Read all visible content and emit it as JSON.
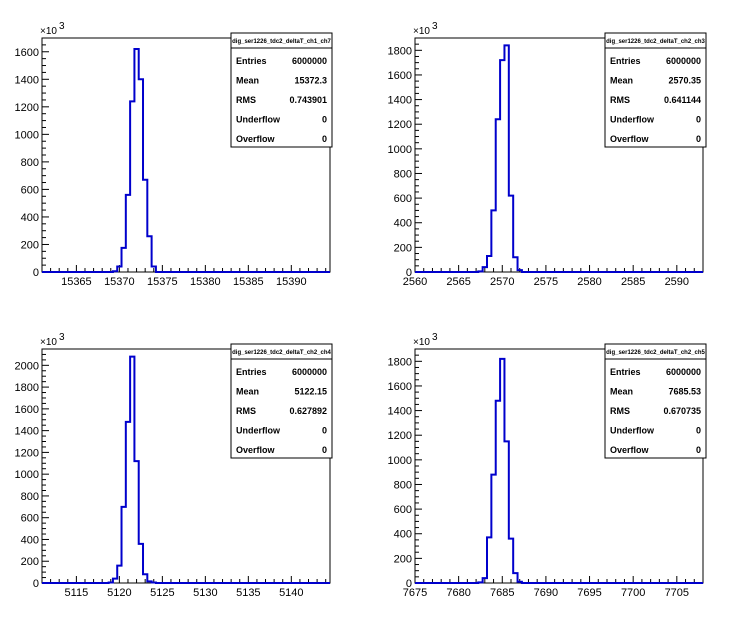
{
  "chart_data": [
    {
      "type": "bar",
      "title": "dig_ser1226_tdc2_deltaT_ch1_ch7",
      "multiplier": "×10",
      "multiplier_exp": "3",
      "xlim": [
        15361,
        15394.5
      ],
      "ylim": [
        0,
        1700
      ],
      "x_ticks": [
        15365,
        15370,
        15375,
        15380,
        15385,
        15390
      ],
      "y_ticks": [
        0,
        200,
        400,
        600,
        800,
        1000,
        1200,
        1400,
        1600
      ],
      "bin_width": 0.5,
      "x": [
        15369.5,
        15370.0,
        15370.5,
        15371.0,
        15371.5,
        15372.0,
        15372.5,
        15373.0,
        15373.5,
        15374.0
      ],
      "values": [
        5,
        40,
        175,
        560,
        1240,
        1620,
        1400,
        670,
        260,
        40
      ],
      "stats": [
        {
          "label": "Entries",
          "value": "6000000"
        },
        {
          "label": "Mean",
          "value": "15372.3"
        },
        {
          "label": "RMS",
          "value": "0.743901"
        },
        {
          "label": "Underflow",
          "value": "0"
        },
        {
          "label": "Overflow",
          "value": "0"
        }
      ]
    },
    {
      "type": "bar",
      "title": "dig_ser1226_tdc2_deltaT_ch2_ch3",
      "multiplier": "×10",
      "multiplier_exp": "3",
      "xlim": [
        2560,
        2593
      ],
      "ylim": [
        0,
        1900
      ],
      "x_ticks": [
        2560,
        2565,
        2570,
        2575,
        2580,
        2585,
        2590
      ],
      "y_ticks": [
        0,
        200,
        400,
        600,
        800,
        1000,
        1200,
        1400,
        1600,
        1800
      ],
      "bin_width": 0.5,
      "x": [
        2567.5,
        2568.0,
        2568.5,
        2569.0,
        2569.5,
        2570.0,
        2570.5,
        2571.0,
        2571.5,
        2572.0
      ],
      "values": [
        5,
        40,
        130,
        500,
        1240,
        1720,
        1840,
        620,
        120,
        15
      ],
      "stats": [
        {
          "label": "Entries",
          "value": "6000000"
        },
        {
          "label": "Mean",
          "value": "2570.35"
        },
        {
          "label": "RMS",
          "value": "0.641144"
        },
        {
          "label": "Underflow",
          "value": "0"
        },
        {
          "label": "Overflow",
          "value": "0"
        }
      ]
    },
    {
      "type": "bar",
      "title": "dig_ser1226_tdc2_deltaT_ch2_ch4",
      "multiplier": "×10",
      "multiplier_exp": "3",
      "xlim": [
        5111,
        5144.5
      ],
      "ylim": [
        0,
        2150
      ],
      "x_ticks": [
        5115,
        5120,
        5125,
        5130,
        5135,
        5140
      ],
      "y_ticks": [
        0,
        200,
        400,
        600,
        800,
        1000,
        1200,
        1400,
        1600,
        1800,
        2000
      ],
      "bin_width": 0.5,
      "x": [
        5119.0,
        5119.5,
        5120.0,
        5120.5,
        5121.0,
        5121.5,
        5122.0,
        5122.5,
        5123.0,
        5123.5,
        5124.0
      ],
      "values": [
        5,
        40,
        160,
        700,
        1480,
        2080,
        1120,
        360,
        80,
        15,
        5
      ],
      "stats": [
        {
          "label": "Entries",
          "value": "6000000"
        },
        {
          "label": "Mean",
          "value": "5122.15"
        },
        {
          "label": "RMS",
          "value": "0.627892"
        },
        {
          "label": "Underflow",
          "value": "0"
        },
        {
          "label": "Overflow",
          "value": "0"
        }
      ]
    },
    {
      "type": "bar",
      "title": "dig_ser1226_tdc2_deltaT_ch2_ch5",
      "multiplier": "×10",
      "multiplier_exp": "3",
      "xlim": [
        7675,
        7708
      ],
      "ylim": [
        0,
        1900
      ],
      "x_ticks": [
        7675,
        7680,
        7685,
        7690,
        7695,
        7700,
        7705
      ],
      "y_ticks": [
        0,
        200,
        400,
        600,
        800,
        1000,
        1200,
        1400,
        1600,
        1800
      ],
      "bin_width": 0.5,
      "x": [
        7682.5,
        7683.0,
        7683.5,
        7684.0,
        7684.5,
        7685.0,
        7685.5,
        7686.0,
        7686.5,
        7687.0
      ],
      "values": [
        5,
        40,
        370,
        880,
        1480,
        1820,
        1150,
        360,
        80,
        10
      ],
      "stats": [
        {
          "label": "Entries",
          "value": "6000000"
        },
        {
          "label": "Mean",
          "value": "7685.53"
        },
        {
          "label": "RMS",
          "value": "0.670735"
        },
        {
          "label": "Underflow",
          "value": "0"
        },
        {
          "label": "Overflow",
          "value": "0"
        }
      ]
    }
  ]
}
